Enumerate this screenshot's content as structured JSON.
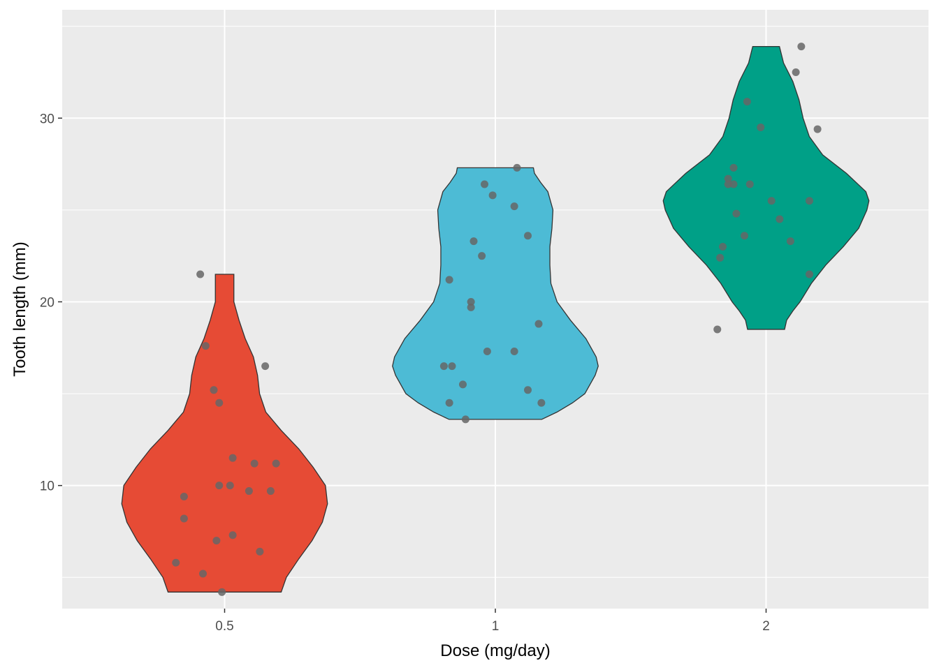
{
  "chart_data": {
    "type": "violin",
    "xlabel": "Dose (mg/day)",
    "ylabel": "Tooth length (mm)",
    "categories": [
      "0.5",
      "1",
      "2"
    ],
    "ylim": [
      3.3,
      35.9
    ],
    "yticks": [
      10,
      20,
      30
    ],
    "grid": true,
    "legend": "none",
    "colors": {
      "0.5": "#E64B35",
      "1": "#4DBBD5",
      "2": "#00A087",
      "points": "#666666",
      "panel": "#EBEBEB",
      "outline": "#333333"
    },
    "violins": [
      {
        "category": "0.5",
        "min": 4.2,
        "max": 21.5,
        "profile": [
          [
            4.2,
            0.55
          ],
          [
            5.0,
            0.6
          ],
          [
            6.0,
            0.72
          ],
          [
            7.0,
            0.85
          ],
          [
            8.0,
            0.95
          ],
          [
            9.0,
            1.0
          ],
          [
            10.0,
            0.98
          ],
          [
            11.0,
            0.86
          ],
          [
            12.0,
            0.72
          ],
          [
            13.0,
            0.55
          ],
          [
            14.0,
            0.4
          ],
          [
            15.0,
            0.34
          ],
          [
            16.0,
            0.32
          ],
          [
            17.0,
            0.28
          ],
          [
            18.0,
            0.2
          ],
          [
            19.0,
            0.14
          ],
          [
            20.0,
            0.09
          ],
          [
            21.0,
            0.09
          ],
          [
            21.5,
            0.09
          ]
        ],
        "points": [
          [
            -0.09,
            21.5
          ],
          [
            -0.07,
            17.6
          ],
          [
            -0.04,
            15.2
          ],
          [
            -0.02,
            14.5
          ],
          [
            0.15,
            16.5
          ],
          [
            0.03,
            11.5
          ],
          [
            0.11,
            11.2
          ],
          [
            0.19,
            11.2
          ],
          [
            -0.02,
            10.0
          ],
          [
            0.02,
            10.0
          ],
          [
            0.09,
            9.7
          ],
          [
            0.17,
            9.7
          ],
          [
            -0.15,
            9.4
          ],
          [
            -0.15,
            8.2
          ],
          [
            0.03,
            7.3
          ],
          [
            -0.03,
            7.0
          ],
          [
            0.13,
            6.4
          ],
          [
            -0.18,
            5.8
          ],
          [
            -0.08,
            5.2
          ],
          [
            -0.01,
            4.2
          ]
        ]
      },
      {
        "category": "1",
        "min": 13.6,
        "max": 27.3,
        "profile": [
          [
            13.6,
            0.45
          ],
          [
            14.0,
            0.6
          ],
          [
            14.5,
            0.75
          ],
          [
            15.0,
            0.87
          ],
          [
            16.0,
            0.97
          ],
          [
            16.5,
            1.0
          ],
          [
            17.0,
            0.98
          ],
          [
            18.0,
            0.88
          ],
          [
            19.0,
            0.73
          ],
          [
            20.0,
            0.6
          ],
          [
            21.0,
            0.54
          ],
          [
            22.0,
            0.53
          ],
          [
            23.0,
            0.53
          ],
          [
            24.0,
            0.55
          ],
          [
            25.0,
            0.56
          ],
          [
            26.0,
            0.51
          ],
          [
            26.5,
            0.44
          ],
          [
            27.0,
            0.38
          ],
          [
            27.3,
            0.37
          ]
        ],
        "points": [
          [
            0.08,
            27.3
          ],
          [
            -0.04,
            26.4
          ],
          [
            -0.01,
            25.8
          ],
          [
            0.07,
            25.2
          ],
          [
            0.12,
            23.6
          ],
          [
            -0.08,
            23.3
          ],
          [
            -0.05,
            22.5
          ],
          [
            -0.17,
            21.2
          ],
          [
            -0.09,
            20.0
          ],
          [
            -0.09,
            19.7
          ],
          [
            0.16,
            18.8
          ],
          [
            -0.03,
            17.3
          ],
          [
            0.07,
            17.3
          ],
          [
            -0.19,
            16.5
          ],
          [
            -0.16,
            16.5
          ],
          [
            -0.12,
            15.5
          ],
          [
            0.12,
            15.2
          ],
          [
            -0.17,
            14.5
          ],
          [
            0.17,
            14.5
          ],
          [
            -0.11,
            13.6
          ]
        ]
      },
      {
        "category": "2",
        "min": 18.5,
        "max": 33.9,
        "profile": [
          [
            18.5,
            0.18
          ],
          [
            19.0,
            0.2
          ],
          [
            19.5,
            0.26
          ],
          [
            20.0,
            0.33
          ],
          [
            21.0,
            0.44
          ],
          [
            22.0,
            0.58
          ],
          [
            23.0,
            0.75
          ],
          [
            24.0,
            0.9
          ],
          [
            25.0,
            0.98
          ],
          [
            25.5,
            1.0
          ],
          [
            26.0,
            0.97
          ],
          [
            27.0,
            0.78
          ],
          [
            28.0,
            0.55
          ],
          [
            29.0,
            0.42
          ],
          [
            30.0,
            0.36
          ],
          [
            31.0,
            0.32
          ],
          [
            32.0,
            0.26
          ],
          [
            33.0,
            0.17
          ],
          [
            33.9,
            0.13
          ]
        ],
        "points": [
          [
            0.13,
            33.9
          ],
          [
            0.11,
            32.5
          ],
          [
            -0.07,
            30.9
          ],
          [
            -0.02,
            29.5
          ],
          [
            0.19,
            29.4
          ],
          [
            -0.12,
            27.3
          ],
          [
            -0.14,
            26.7
          ],
          [
            -0.14,
            26.4
          ],
          [
            -0.12,
            26.4
          ],
          [
            -0.06,
            26.4
          ],
          [
            0.02,
            25.5
          ],
          [
            0.16,
            25.5
          ],
          [
            -0.11,
            24.8
          ],
          [
            0.05,
            24.5
          ],
          [
            -0.08,
            23.6
          ],
          [
            0.09,
            23.3
          ],
          [
            -0.16,
            23.0
          ],
          [
            -0.17,
            22.4
          ],
          [
            0.16,
            21.5
          ],
          [
            -0.18,
            18.5
          ]
        ]
      }
    ]
  }
}
